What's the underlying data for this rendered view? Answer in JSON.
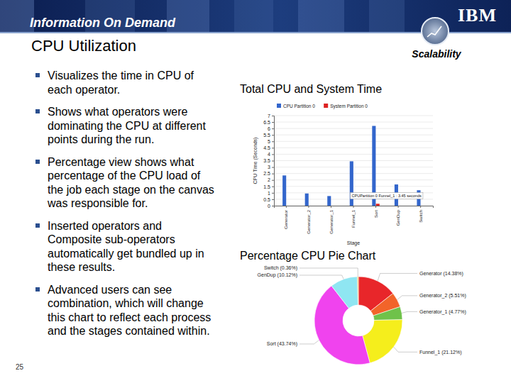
{
  "slide": {
    "banner": "Information On Demand",
    "logo": "IBM",
    "title": "CPU Utilization",
    "badge": "Scalability",
    "bullets": [
      "Visualizes the time in CPU of each operator.",
      "Shows what operators were dominating the CPU at different points during the run.",
      "Percentage view shows what percentage of the CPU load of the job each stage on the canvas was responsible for.",
      "Inserted operators and Composite sub-operators automatically get bundled up in these results.",
      "Advanced users can see combination, which will change this chart to reflect each process and the stages contained within."
    ],
    "page_number": "25"
  },
  "chart_data": [
    {
      "type": "bar",
      "title": "Total CPU and System Time",
      "categories": [
        "Generator",
        "Generator_2",
        "Generator_1",
        "Funnel_1",
        "Sort",
        "GenDup",
        "Switch"
      ],
      "series": [
        {
          "name": "CPU Partition 0",
          "color": "#3366cc",
          "values": [
            2.35,
            0.95,
            0.75,
            3.45,
            6.2,
            1.65,
            1.2
          ]
        },
        {
          "name": "System Partition 0",
          "color": "#dd2222",
          "values": [
            0,
            0,
            0,
            0,
            0.15,
            0,
            0
          ]
        }
      ],
      "ylim": [
        0,
        7
      ],
      "yticks": [
        0,
        0.5,
        1,
        1.5,
        2,
        2.5,
        3,
        3.5,
        4,
        4.5,
        5,
        5.5,
        6,
        6.5,
        7
      ],
      "y_label": "CPU Time (Seconds)",
      "x_label": "Stage",
      "grid": true,
      "legend": "top",
      "annotations": [
        "CPUPartition 0 Funnel_1 : 3.45 seconds"
      ]
    },
    {
      "type": "pie",
      "title": "Percentage CPU Pie Chart",
      "values": [
        14.38,
        5.51,
        4.77,
        21.12,
        43.74,
        10.12,
        0.36
      ],
      "value_labels": [
        "Generator (14.38%)",
        "Generator_2 (5.51%)",
        "Generator_1 (4.77%)",
        "Funnel_1 (21.12%)",
        "Sort (43.74%)",
        "GenDup (10.12%)",
        "Switch (0.36%)"
      ],
      "colors": [
        "#e8262a",
        "#f2642a",
        "#6fc24a",
        "#f5ee1c",
        "#f043ee",
        "#8fe6f2",
        "#f6b12b"
      ]
    }
  ]
}
